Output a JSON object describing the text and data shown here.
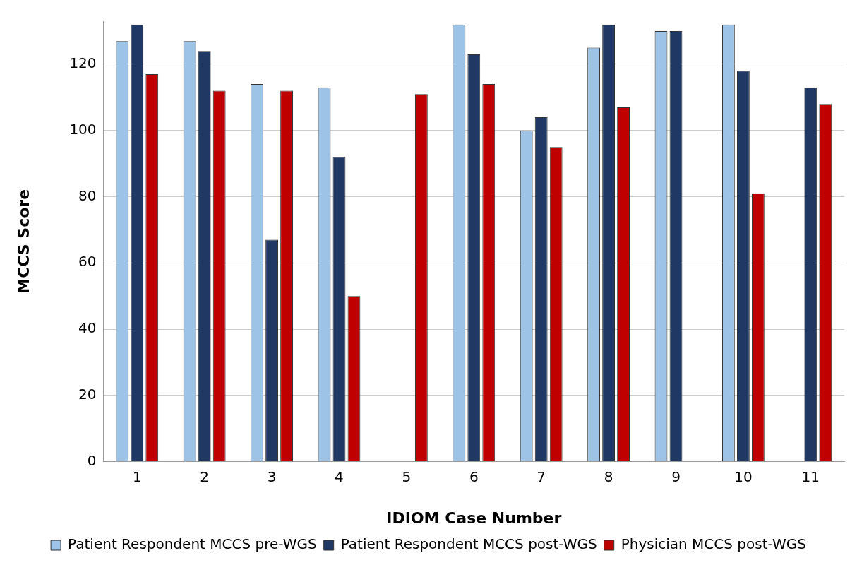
{
  "chart_data": {
    "type": "bar",
    "xlabel": "IDIOM Case Number",
    "ylabel": "MCCS Score",
    "categories": [
      "1",
      "2",
      "3",
      "4",
      "5",
      "6",
      "7",
      "8",
      "9",
      "10",
      "11"
    ],
    "series": [
      {
        "name": "Patient Respondent MCCS pre-WGS",
        "color": "#9dc3e6",
        "values": [
          127,
          127,
          114,
          113,
          null,
          132,
          100,
          125,
          130,
          132,
          null
        ]
      },
      {
        "name": "Patient Respondent MCCS post-WGS",
        "color": "#1f3864",
        "values": [
          132,
          124,
          67,
          92,
          null,
          123,
          104,
          132,
          130,
          118,
          113
        ]
      },
      {
        "name": "Physician MCCS post-WGS",
        "color": "#c00000",
        "values": [
          117,
          112,
          112,
          50,
          111,
          114,
          95,
          107,
          null,
          81,
          108
        ]
      }
    ],
    "ylim": [
      0,
      133
    ],
    "yticks": [
      0,
      20,
      40,
      60,
      80,
      100,
      120
    ],
    "grid": "y",
    "legend": "bottom"
  }
}
